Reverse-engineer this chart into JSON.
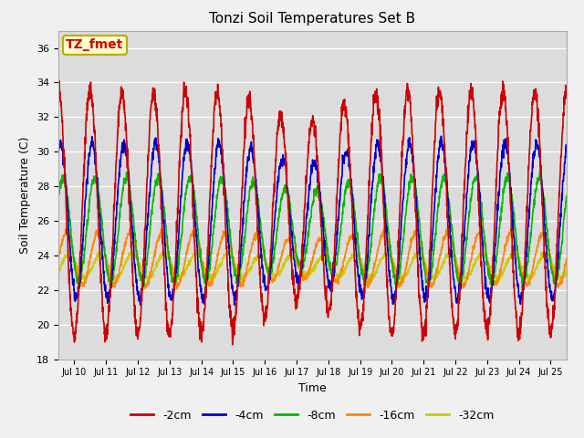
{
  "title": "Tonzi Soil Temperatures Set B",
  "xlabel": "Time",
  "ylabel": "Soil Temperature (C)",
  "ylim": [
    18,
    37
  ],
  "xlim_days": [
    9.5,
    25.5
  ],
  "xtick_positions": [
    10,
    11,
    12,
    13,
    14,
    15,
    16,
    17,
    18,
    19,
    20,
    21,
    22,
    23,
    24,
    25
  ],
  "xtick_labels": [
    "Jul 10",
    "Jul 11",
    "Jul 12",
    "Jul 13",
    "Jul 14",
    "Jul 15",
    "Jul 16",
    "Jul 17",
    "Jul 18",
    "Jul 19",
    "Jul 20",
    "Jul 21",
    "Jul 22",
    "Jul 23",
    "Jul 24",
    "Jul 25"
  ],
  "legend_labels": [
    "-2cm",
    "-4cm",
    "-8cm",
    "-16cm",
    "-32cm"
  ],
  "line_colors": [
    "#cc0000",
    "#0000cc",
    "#00bb00",
    "#ff8800",
    "#cccc00"
  ],
  "line_widths": [
    1.2,
    1.2,
    1.2,
    1.2,
    1.2
  ],
  "annotation_text": "TZ_fmet",
  "annotation_color": "#cc0000",
  "annotation_bg": "#ffffcc",
  "annotation_border": "#bbaa00",
  "bg_color": "#dcdcdc",
  "fig_bg": "#f0f0f0",
  "n_points": 2000,
  "period_days": 1.0,
  "amplitudes": [
    7.0,
    4.5,
    3.0,
    1.5,
    0.7
  ],
  "means": [
    26.5,
    26.0,
    25.5,
    23.8,
    23.4
  ],
  "phase_offsets_days": [
    0.0,
    0.06,
    0.14,
    0.25,
    0.33
  ],
  "noise_levels": [
    0.3,
    0.2,
    0.15,
    0.1,
    0.08
  ]
}
